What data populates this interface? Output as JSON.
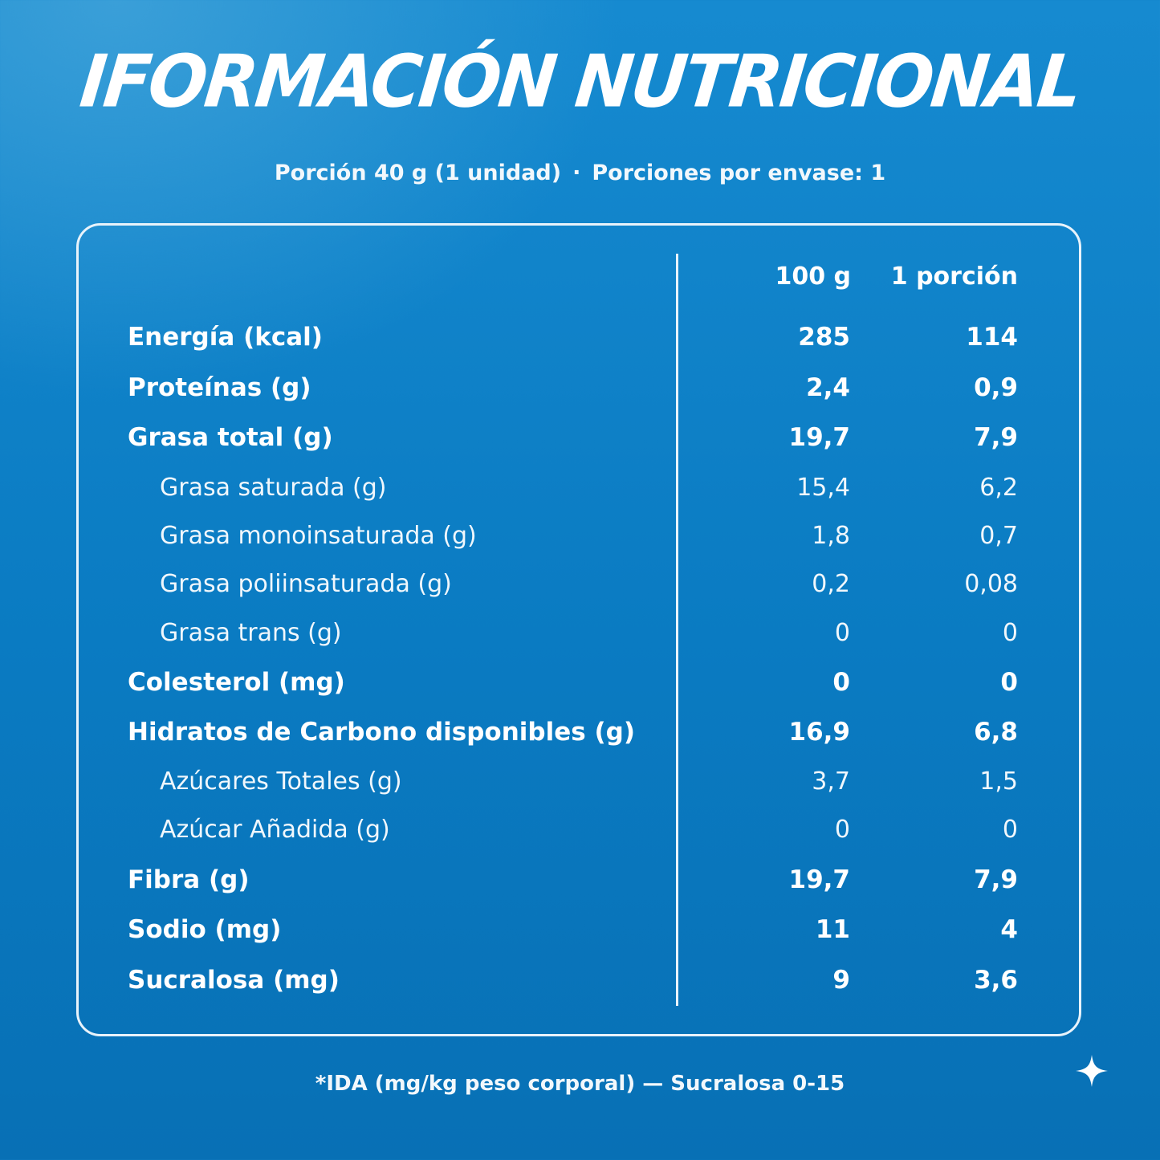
{
  "title": "IFORMACIÓN NUTRICIONAL",
  "serving": {
    "portion": "Porción 40 g (1 unidad)",
    "separator": "·",
    "per_package": "Porciones por envase: 1"
  },
  "table": {
    "headers": {
      "per_100g": "100 g",
      "per_portion": "1 porción"
    },
    "rows": [
      {
        "label": "Energía (kcal)",
        "per_100g": "285",
        "per_portion": "114",
        "level": "main"
      },
      {
        "label": "Proteínas (g)",
        "per_100g": "2,4",
        "per_portion": "0,9",
        "level": "main"
      },
      {
        "label": "Grasa total (g)",
        "per_100g": "19,7",
        "per_portion": "7,9",
        "level": "main"
      },
      {
        "label": "Grasa saturada (g)",
        "per_100g": "15,4",
        "per_portion": "6,2",
        "level": "sub"
      },
      {
        "label": "Grasa monoinsaturada (g)",
        "per_100g": "1,8",
        "per_portion": "0,7",
        "level": "sub"
      },
      {
        "label": "Grasa poliinsaturada (g)",
        "per_100g": "0,2",
        "per_portion": "0,08",
        "level": "sub"
      },
      {
        "label": "Grasa trans (g)",
        "per_100g": "0",
        "per_portion": "0",
        "level": "sub"
      },
      {
        "label": "Colesterol (mg)",
        "per_100g": "0",
        "per_portion": "0",
        "level": "main"
      },
      {
        "label": "Hidratos de Carbono disponibles (g)",
        "per_100g": "16,9",
        "per_portion": "6,8",
        "level": "main"
      },
      {
        "label": "Azúcares Totales (g)",
        "per_100g": "3,7",
        "per_portion": "1,5",
        "level": "sub"
      },
      {
        "label": "Azúcar Añadida (g)",
        "per_100g": "0",
        "per_portion": "0",
        "level": "sub"
      },
      {
        "label": "Fibra (g)",
        "per_100g": "19,7",
        "per_portion": "7,9",
        "level": "main"
      },
      {
        "label": "Sodio (mg)",
        "per_100g": "11",
        "per_portion": "4",
        "level": "main"
      },
      {
        "label": "Sucralosa (mg)",
        "per_100g": "9",
        "per_portion": "3,6",
        "level": "main"
      }
    ]
  },
  "footnote": "*IDA (mg/kg peso corporal) — Sucralosa 0-15",
  "decor": {
    "sparkle_icon": "sparkle-icon"
  },
  "colors": {
    "background": "#0a7bc2",
    "text": "#ffffff",
    "border": "#e8f3fb"
  }
}
